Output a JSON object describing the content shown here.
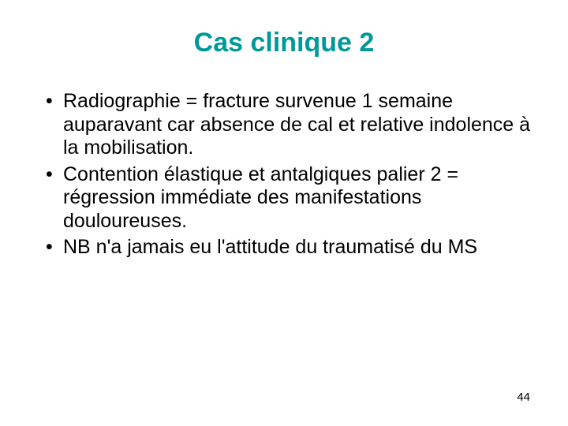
{
  "slide": {
    "title": "Cas clinique 2",
    "title_color": "#009999",
    "title_fontsize": 34,
    "body_fontsize": 25,
    "body_color": "#000000",
    "background_color": "#ffffff",
    "bullets": [
      "Radiographie = fracture survenue 1 semaine auparavant car absence de cal et relative indolence à la mobilisation.",
      "Contention élastique et antalgiques palier 2 = régression immédiate des manifestations douloureuses.",
      "NB n'a jamais eu l'attitude du traumatisé du MS"
    ],
    "page_number": "44"
  }
}
